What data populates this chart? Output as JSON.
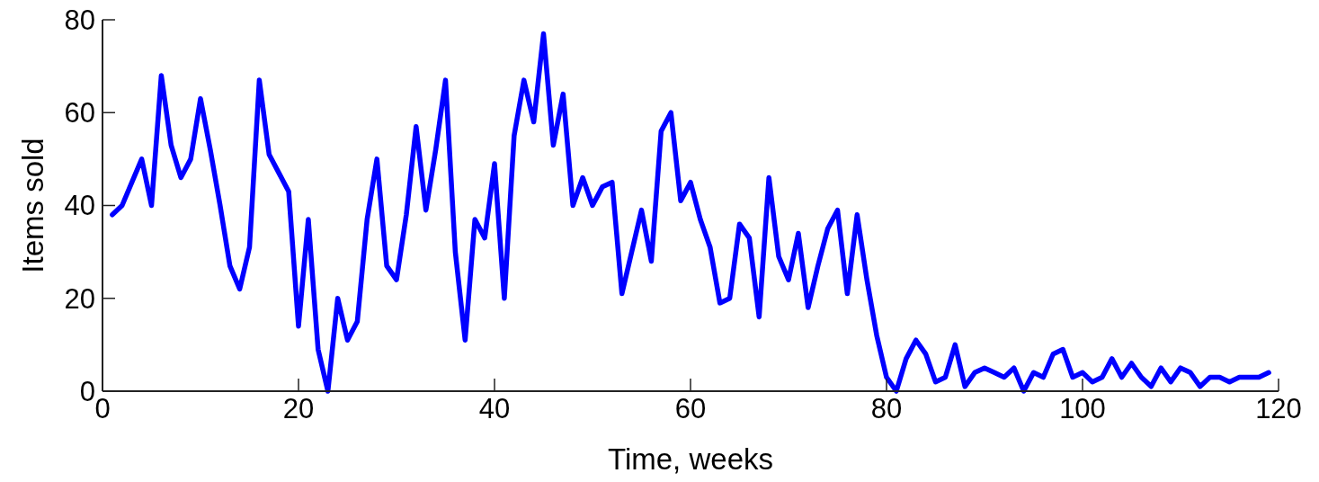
{
  "chart_data": {
    "type": "line",
    "xlabel": "Time, weeks",
    "ylabel": "Items sold",
    "x": [
      1,
      2,
      3,
      4,
      5,
      6,
      7,
      8,
      9,
      10,
      11,
      12,
      13,
      14,
      15,
      16,
      17,
      18,
      19,
      20,
      21,
      22,
      23,
      24,
      25,
      26,
      27,
      28,
      29,
      30,
      31,
      32,
      33,
      34,
      35,
      36,
      37,
      38,
      39,
      40,
      41,
      42,
      43,
      44,
      45,
      46,
      47,
      48,
      49,
      50,
      51,
      52,
      53,
      54,
      55,
      56,
      57,
      58,
      59,
      60,
      61,
      62,
      63,
      64,
      65,
      66,
      67,
      68,
      69,
      70,
      71,
      72,
      73,
      74,
      75,
      76,
      77,
      78,
      79,
      80,
      81,
      82,
      83,
      84,
      85,
      86,
      87,
      88,
      89,
      90,
      91,
      92,
      93,
      94,
      95,
      96,
      97,
      98,
      99,
      100,
      101,
      102,
      103,
      104,
      105,
      106,
      107,
      108,
      109,
      110,
      111,
      112,
      113,
      114,
      115,
      116,
      117,
      118,
      119
    ],
    "series": [
      {
        "color": "#0000ff",
        "values": [
          38,
          40,
          45,
          50,
          40,
          68,
          53,
          46,
          50,
          63,
          52,
          40,
          27,
          22,
          31,
          67,
          51,
          47,
          43,
          14,
          37,
          9,
          0,
          20,
          11,
          15,
          37,
          50,
          27,
          24,
          38,
          57,
          39,
          52,
          67,
          30,
          11,
          37,
          33,
          49,
          20,
          55,
          67,
          58,
          77,
          53,
          64,
          40,
          46,
          40,
          44,
          45,
          21,
          30,
          39,
          28,
          56,
          60,
          41,
          45,
          37,
          31,
          19,
          20,
          36,
          33,
          16,
          46,
          29,
          24,
          34,
          18,
          27,
          35,
          39,
          21,
          38,
          24,
          12,
          3,
          0,
          7,
          11,
          8,
          2,
          3,
          10,
          1,
          4,
          5,
          4,
          3,
          5,
          0,
          4,
          3,
          8,
          9,
          3,
          4,
          2,
          3,
          7,
          3,
          6,
          3,
          1,
          5,
          2,
          5,
          4,
          1,
          3,
          3,
          2,
          3,
          3,
          3,
          4
        ]
      }
    ],
    "xlim": [
      0,
      120
    ],
    "xticks": [
      0,
      20,
      40,
      60,
      80,
      100,
      120
    ],
    "ylim": [
      0,
      80
    ],
    "yticks": [
      0,
      20,
      40,
      60,
      80
    ],
    "grid": false,
    "marker": "none",
    "line_style": "solid"
  }
}
